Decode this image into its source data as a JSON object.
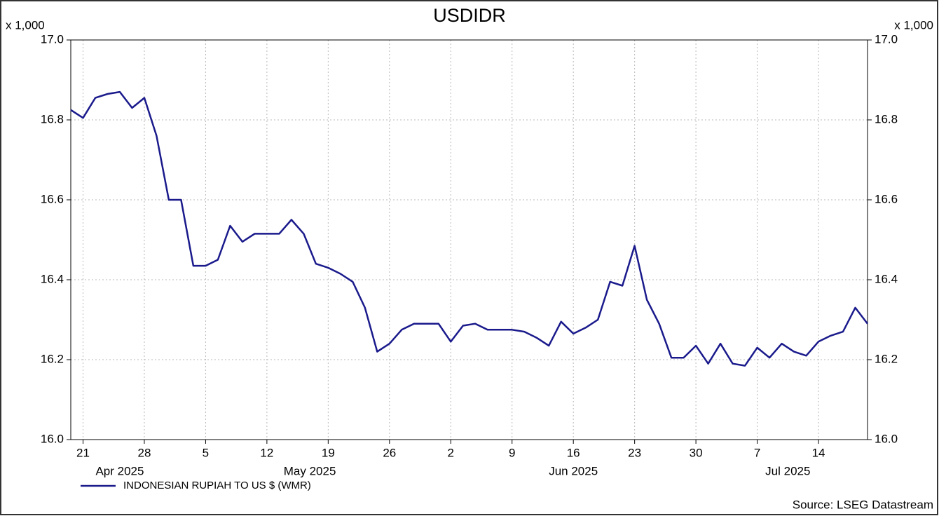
{
  "chart_data": {
    "type": "line",
    "title": "USDIDR",
    "y_unit_label": "x 1,000",
    "source": "Source: LSEG Datastream",
    "x": [
      "2025-04-18",
      "2025-04-21",
      "2025-04-22",
      "2025-04-23",
      "2025-04-24",
      "2025-04-25",
      "2025-04-28",
      "2025-04-29",
      "2025-04-30",
      "2025-05-01",
      "2025-05-02",
      "2025-05-05",
      "2025-05-06",
      "2025-05-07",
      "2025-05-08",
      "2025-05-09",
      "2025-05-12",
      "2025-05-13",
      "2025-05-14",
      "2025-05-15",
      "2025-05-16",
      "2025-05-19",
      "2025-05-20",
      "2025-05-21",
      "2025-05-22",
      "2025-05-23",
      "2025-05-26",
      "2025-05-27",
      "2025-05-28",
      "2025-05-29",
      "2025-05-30",
      "2025-06-02",
      "2025-06-03",
      "2025-06-04",
      "2025-06-05",
      "2025-06-06",
      "2025-06-09",
      "2025-06-10",
      "2025-06-11",
      "2025-06-12",
      "2025-06-13",
      "2025-06-16",
      "2025-06-17",
      "2025-06-18",
      "2025-06-19",
      "2025-06-20",
      "2025-06-23",
      "2025-06-24",
      "2025-06-25",
      "2025-06-26",
      "2025-06-27",
      "2025-06-30",
      "2025-07-01",
      "2025-07-02",
      "2025-07-03",
      "2025-07-04",
      "2025-07-07",
      "2025-07-08",
      "2025-07-09",
      "2025-07-10",
      "2025-07-11",
      "2025-07-14",
      "2025-07-15",
      "2025-07-16",
      "2025-07-17",
      "2025-07-18"
    ],
    "series": [
      {
        "name": "INDONESIAN RUPIAH TO US $ (WMR)",
        "color": "#1a1a8c",
        "values": [
          16.825,
          16.805,
          16.855,
          16.865,
          16.87,
          16.83,
          16.855,
          16.76,
          16.6,
          16.6,
          16.435,
          16.435,
          16.45,
          16.535,
          16.495,
          16.515,
          16.515,
          16.515,
          16.55,
          16.515,
          16.44,
          16.43,
          16.415,
          16.395,
          16.33,
          16.22,
          16.24,
          16.275,
          16.29,
          16.29,
          16.29,
          16.245,
          16.285,
          16.29,
          16.275,
          16.275,
          16.275,
          16.27,
          16.255,
          16.235,
          16.295,
          16.265,
          16.28,
          16.3,
          16.395,
          16.385,
          16.485,
          16.35,
          16.29,
          16.205,
          16.205,
          16.235,
          16.19,
          16.24,
          16.19,
          16.185,
          16.23,
          16.205,
          16.24,
          16.22,
          16.21,
          16.245,
          16.26,
          16.27,
          16.33,
          16.29
        ]
      }
    ],
    "xlim": [
      "2025-04-18",
      "2025-07-18"
    ],
    "xticks": [
      {
        "value": "2025-04-21",
        "label": "21"
      },
      {
        "value": "2025-04-28",
        "label": "28"
      },
      {
        "value": "2025-05-05",
        "label": "5"
      },
      {
        "value": "2025-05-12",
        "label": "12"
      },
      {
        "value": "2025-05-19",
        "label": "19"
      },
      {
        "value": "2025-05-26",
        "label": "26"
      },
      {
        "value": "2025-06-02",
        "label": "2"
      },
      {
        "value": "2025-06-09",
        "label": "9"
      },
      {
        "value": "2025-06-16",
        "label": "16"
      },
      {
        "value": "2025-06-23",
        "label": "23"
      },
      {
        "value": "2025-06-30",
        "label": "30"
      },
      {
        "value": "2025-07-07",
        "label": "7"
      },
      {
        "value": "2025-07-14",
        "label": "14"
      }
    ],
    "month_labels": [
      "Apr 2025",
      "May 2025",
      "Jun 2025",
      "Jul 2025"
    ],
    "ylim": [
      16.0,
      17.0
    ],
    "yticks": [
      {
        "value": 16,
        "label": "16.0"
      },
      16.2,
      16.4,
      16.6,
      16.8,
      {
        "value": 17,
        "label": "17.0"
      }
    ],
    "grid": true,
    "legend": "bottom-left"
  }
}
